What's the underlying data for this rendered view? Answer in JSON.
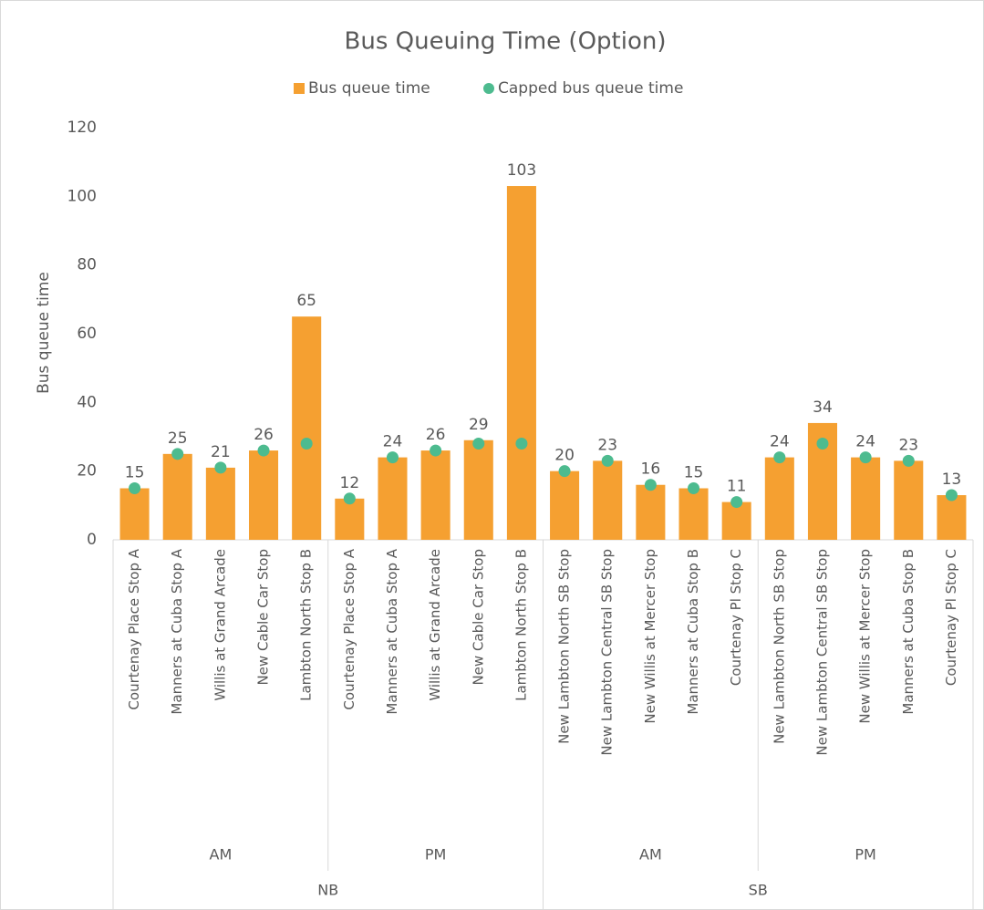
{
  "chart_data": {
    "type": "bar",
    "title": "Bus Queuing Time (Option)",
    "y_label": "Bus queue time",
    "categories": [
      "Courtenay Place Stop A",
      "Manners at Cuba Stop A",
      "Willis at Grand Arcade",
      "New Cable Car Stop",
      "Lambton North Stop B",
      "Courtenay Place Stop A",
      "Manners at Cuba Stop A",
      "Willis at Grand Arcade",
      "New Cable Car Stop",
      "Lambton North Stop B",
      "New Lambton North SB Stop",
      "New Lambton Central SB Stop",
      "New Willis at Mercer Stop",
      "Manners at Cuba Stop B",
      "Courtenay Pl Stop C",
      "New Lambton North SB Stop",
      "New Lambton Central SB Stop",
      "New Willis at Mercer Stop",
      "Manners at Cuba Stop B",
      "Courtenay Pl Stop C"
    ],
    "periods": [
      "AM",
      "PM",
      "AM",
      "PM"
    ],
    "directions": [
      "NB",
      "SB"
    ],
    "series": [
      {
        "name": "Bus queue time",
        "color": "#f5a031",
        "mark": "bar",
        "values": [
          15,
          25,
          21,
          26,
          65,
          12,
          24,
          26,
          29,
          103,
          20,
          23,
          16,
          15,
          11,
          24,
          34,
          24,
          23,
          13
        ]
      },
      {
        "name": "Capped bus queue time",
        "color": "#4dbb8f",
        "mark": "dot",
        "values": [
          15,
          25,
          21,
          26,
          28,
          12,
          24,
          26,
          28,
          28,
          20,
          23,
          16,
          15,
          11,
          24,
          28,
          24,
          23,
          13
        ]
      }
    ],
    "ylim": [
      0,
      120
    ],
    "yticks": [
      0,
      20,
      40,
      60,
      80,
      100,
      120
    ],
    "data_labels_series": 0,
    "legend": "top",
    "grid": false
  }
}
